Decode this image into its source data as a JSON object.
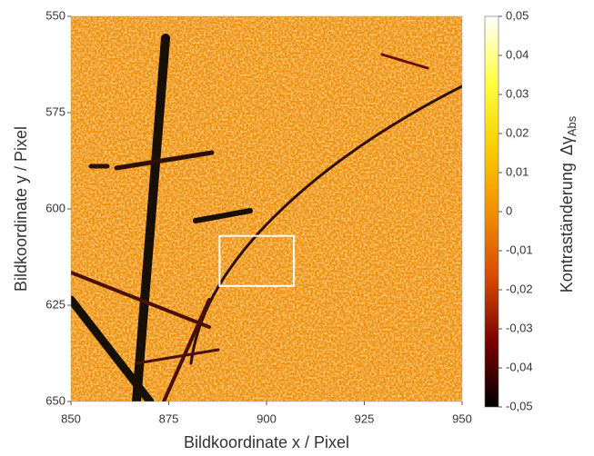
{
  "chart_data": {
    "type": "heatmap",
    "xlabel": "Bildkoordinate x / Pixel",
    "ylabel": "Bildkoordinate y / Pixel",
    "xlim": [
      850,
      950
    ],
    "xticks": [
      850,
      875,
      900,
      925,
      950
    ],
    "ylim": [
      650,
      550
    ],
    "yticks": [
      550,
      575,
      600,
      625,
      650
    ],
    "colormap": [
      "#000000",
      "#7a0000",
      "#d84a00",
      "#f09000",
      "#f8d000",
      "#ffff40",
      "#ffffff"
    ],
    "clim": [
      -0.05,
      0.05
    ],
    "cticks": [
      {
        "value": -0.05,
        "label": "-0,05"
      },
      {
        "value": -0.04,
        "label": "-0,04"
      },
      {
        "value": -0.03,
        "label": "-0,03"
      },
      {
        "value": -0.02,
        "label": "-0,02"
      },
      {
        "value": -0.01,
        "label": "-0,01"
      },
      0,
      {
        "value": 0.01,
        "label": "0,01"
      },
      {
        "value": 0.02,
        "label": "0,02"
      },
      {
        "value": 0.03,
        "label": "0,03"
      },
      {
        "value": 0.04,
        "label": "0,04"
      },
      {
        "value": 0.05,
        "label": "0,05"
      }
    ],
    "colorbar_label": "Kontraständerung",
    "colorbar_symbol": "Δγ",
    "colorbar_subscript": "Abs",
    "highlight": {
      "x": [
        888,
        907
      ],
      "y": [
        607,
        620
      ],
      "color": "#ffffff"
    }
  }
}
